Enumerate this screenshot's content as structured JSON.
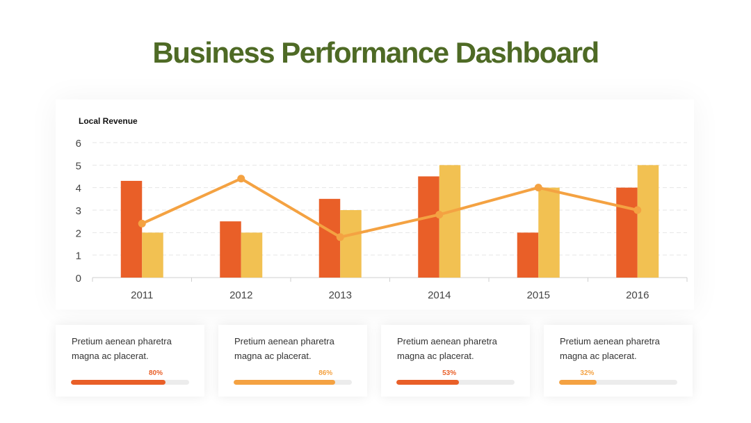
{
  "title": "Business Performance Dashboard",
  "colors": {
    "title": "#4e6a25",
    "series_dark": "#e95f28",
    "series_light": "#f2c152",
    "line": "#f4a242"
  },
  "chart_data": {
    "type": "bar",
    "title": "Local Revenue",
    "categories": [
      "2011",
      "2012",
      "2013",
      "2014",
      "2015",
      "2016"
    ],
    "series": [
      {
        "type": "bar",
        "color": "#e95f28",
        "values": [
          4.3,
          2.5,
          3.5,
          4.5,
          2.0,
          4.0
        ]
      },
      {
        "type": "bar",
        "color": "#f2c152",
        "values": [
          2.0,
          2.0,
          3.0,
          5.0,
          4.0,
          5.0
        ]
      },
      {
        "type": "line",
        "color": "#f4a242",
        "values": [
          2.4,
          4.4,
          1.8,
          2.8,
          4.0,
          3.0
        ]
      }
    ],
    "ylim": [
      0,
      6
    ],
    "yticks": [
      "0",
      "1",
      "2",
      "3",
      "4",
      "5",
      "6"
    ],
    "grid": true,
    "legend": "none"
  },
  "stats": [
    {
      "text": "Pretium aenean pharetra magna ac placerat.",
      "percent_label": "80%",
      "value": 0.8,
      "color": "#e95f28"
    },
    {
      "text": "Pretium aenean pharetra magna ac placerat.",
      "percent_label": "86%",
      "value": 0.86,
      "color": "#f4a242"
    },
    {
      "text": "Pretium aenean pharetra magna ac placerat.",
      "percent_label": "53%",
      "value": 0.53,
      "color": "#e95f28"
    },
    {
      "text": "Pretium aenean pharetra magna ac placerat.",
      "percent_label": "32%",
      "value": 0.32,
      "color": "#f4a242"
    }
  ]
}
